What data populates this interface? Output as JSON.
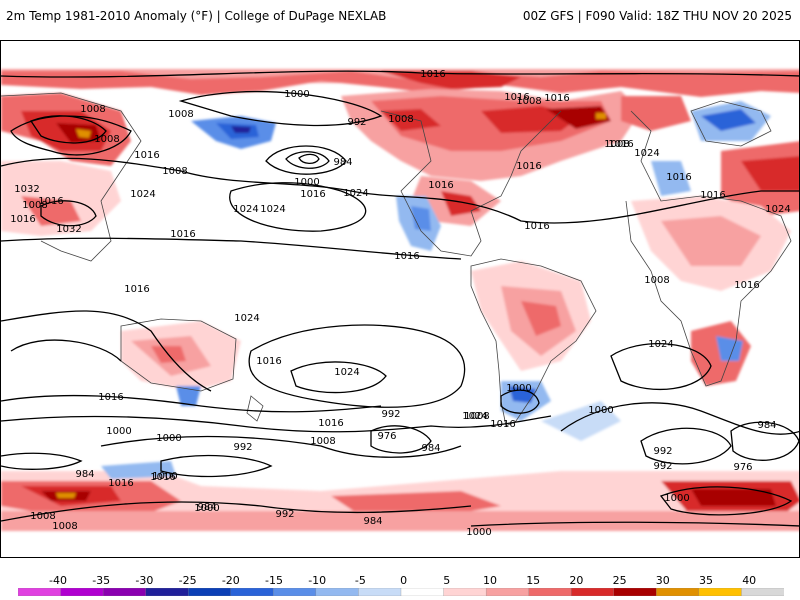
{
  "header": {
    "left_title": "2m Temp 1981-2010 Anomaly (°F) | College of DuPage NEXLAB",
    "right_title": "00Z GFS | F090 Valid: 18Z THU NOV 20 2025"
  },
  "legend": {
    "ticks": [
      "-40",
      "-35",
      "-30",
      "-25",
      "-20",
      "-15",
      "-10",
      "-5",
      "0",
      "5",
      "10",
      "15",
      "20",
      "25",
      "30",
      "35",
      "40"
    ],
    "colors": [
      "#e040e0",
      "#b000d0",
      "#8a00b0",
      "#20209a",
      "#0b3fb6",
      "#2a63d8",
      "#5a8ee8",
      "#93b9f0",
      "#c8dcf7",
      "#ffffff",
      "#ffd4d4",
      "#f7a1a1",
      "#ee6a6a",
      "#d82a2a",
      "#a80000",
      "#e09000",
      "#ffc000",
      "#d8d8d8"
    ]
  },
  "isobars": {
    "labels": [
      "1016",
      "1000",
      "1008",
      "1016",
      "1008",
      "1016",
      "1008",
      "1016",
      "1032",
      "1016",
      "1024",
      "1032",
      "1016",
      "1024",
      "1016",
      "984",
      "1000",
      "1016",
      "1024",
      "1024",
      "1016",
      "992",
      "1008",
      "1016",
      "1016",
      "1016",
      "1024",
      "1008",
      "1008",
      "1016",
      "1016",
      "1024",
      "1016",
      "1008",
      "1016",
      "1016",
      "1024",
      "1008",
      "1008",
      "1016",
      "1024",
      "1000",
      "1016",
      "1016",
      "1000",
      "1008",
      "992",
      "976",
      "984",
      "1016",
      "984",
      "992",
      "1000",
      "1008",
      "1016",
      "1000",
      "992",
      "984",
      "1008",
      "1024",
      "1000",
      "1000",
      "976",
      "984",
      "992",
      "992",
      "1000",
      "984",
      "1000",
      "1016",
      "1008",
      "1024"
    ]
  }
}
